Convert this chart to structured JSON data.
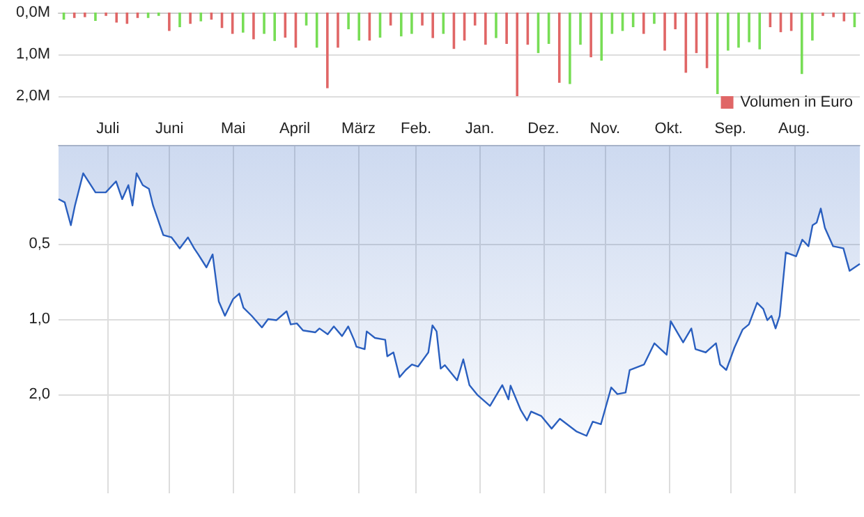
{
  "chart_data": [
    {
      "type": "bar",
      "grid": "y",
      "legend": "bottom right",
      "tick_labels": "y",
      "categories": [
        null,
        null,
        null,
        null,
        null,
        null,
        null,
        null,
        null,
        null,
        null,
        null,
        null,
        null,
        null,
        null,
        null,
        null,
        null,
        null,
        null,
        null,
        null,
        null,
        null,
        null,
        null,
        null,
        null,
        null,
        null,
        null,
        null,
        null,
        null,
        null,
        null,
        null,
        null,
        null,
        null,
        null,
        null,
        null,
        null,
        null,
        null,
        null,
        null,
        null,
        null,
        null,
        null,
        null,
        null,
        null,
        null,
        null,
        null,
        null,
        null,
        null,
        null,
        null,
        null,
        null,
        null,
        null,
        null,
        null,
        null,
        null,
        null,
        null,
        null,
        null
      ],
      "ylim": [
        2,
        0
      ],
      "yticks": [
        {
          "value": 0,
          "label": "0,0M"
        },
        {
          "value": 1,
          "label": "1,0M"
        },
        {
          "value": 2,
          "label": "2,0M"
        }
      ],
      "series": [
        {
          "name": "Volumen in Euro",
          "color": "#e06666",
          "values": [
            0.17,
            0.13,
            0.11,
            0.2,
            0.08,
            0.24,
            0.27,
            0.13,
            0.13,
            0.08,
            0.44,
            0.35,
            0.27,
            0.21,
            0.17,
            0.37,
            0.51,
            0.48,
            0.64,
            0.51,
            0.68,
            0.6,
            0.84,
            0.31,
            0.84,
            1.81,
            0.84,
            0.4,
            0.67,
            0.67,
            0.6,
            0.31,
            0.57,
            0.51,
            0.31,
            0.61,
            0.51,
            0.87,
            0.67,
            0.31,
            0.77,
            0.61,
            0.75,
            2.0,
            0.77,
            0.97,
            0.75,
            1.68,
            1.71,
            0.77,
            1.07,
            1.15,
            0.51,
            0.44,
            0.35,
            0.51,
            0.27,
            0.91,
            0.4,
            1.44,
            0.97,
            1.33,
            1.95,
            0.91,
            0.84,
            0.71,
            0.88,
            0.35,
            0.47,
            0.44,
            1.47,
            0.67,
            0.08,
            0.11,
            0.21,
            0.35
          ],
          "colors": [
            "#77dd55",
            "#e06666",
            "#e06666",
            "#77dd55",
            "#e06666",
            "#e06666",
            "#e06666",
            "#e06666",
            "#77dd55",
            "#77dd55",
            "#e06666",
            "#77dd55",
            "#e06666",
            "#77dd55",
            "#e06666",
            "#e06666",
            "#e06666",
            "#77dd55",
            "#e06666",
            "#77dd55",
            "#77dd55",
            "#e06666",
            "#e06666",
            "#77dd55",
            "#77dd55",
            "#e06666",
            "#e06666",
            "#77dd55",
            "#77dd55",
            "#e06666",
            "#77dd55",
            "#e06666",
            "#77dd55",
            "#77dd55",
            "#e06666",
            "#e06666",
            "#77dd55",
            "#e06666",
            "#e06666",
            "#e06666",
            "#e06666",
            "#77dd55",
            "#e06666",
            "#e06666",
            "#e06666",
            "#77dd55",
            "#77dd55",
            "#e06666",
            "#77dd55",
            "#77dd55",
            "#e06666",
            "#77dd55",
            "#77dd55",
            "#77dd55",
            "#77dd55",
            "#e06666",
            "#77dd55",
            "#e06666",
            "#e06666",
            "#e06666",
            "#e06666",
            "#e06666",
            "#77dd55",
            "#77dd55",
            "#77dd55",
            "#77dd55",
            "#77dd55",
            "#e06666",
            "#e06666",
            "#e06666",
            "#77dd55",
            "#77dd55",
            "#e06666",
            "#e06666",
            "#e06666",
            "#77dd55"
          ]
        }
      ]
    },
    {
      "type": "area",
      "log": "y",
      "grid": true,
      "marker": "none",
      "legend": false,
      "categories": [
        null,
        null,
        null,
        null,
        null,
        null,
        null,
        null,
        null,
        null,
        null,
        null,
        null,
        null,
        null,
        null,
        null,
        null,
        null,
        null,
        null,
        null,
        null,
        null,
        "Juli",
        null,
        null,
        null,
        null,
        null,
        null,
        null,
        null,
        null,
        null,
        null,
        null,
        null,
        null,
        null,
        null,
        null,
        null,
        null,
        null,
        null,
        null,
        null,
        null,
        null,
        null,
        null,
        null,
        null,
        "Juni",
        null,
        null,
        null,
        null,
        null,
        null,
        null,
        null,
        null,
        null,
        null,
        null,
        null,
        null,
        null,
        null,
        null,
        null,
        null,
        null,
        null,
        null,
        null,
        null,
        null,
        null,
        null,
        null,
        null,
        null,
        "Mai",
        null,
        null,
        null,
        null,
        null,
        null,
        null,
        null,
        null,
        null,
        null,
        null,
        null,
        null,
        null,
        null,
        null,
        null,
        null,
        null,
        null,
        null,
        null,
        null,
        null,
        null,
        null,
        null,
        null,
        "April",
        null,
        null,
        null,
        null,
        null,
        null,
        null,
        null,
        null,
        null,
        null,
        null,
        null,
        null,
        null,
        null,
        null,
        null,
        null,
        null,
        null,
        null,
        null,
        null,
        null,
        null,
        null,
        null,
        null,
        null,
        "März",
        null,
        null,
        null,
        null,
        null,
        null,
        null,
        null,
        null,
        null,
        null,
        null,
        null,
        null,
        null,
        null,
        null,
        null,
        null,
        null,
        null,
        null,
        null,
        null,
        null,
        null,
        null,
        "Feb.",
        null,
        null,
        null,
        null,
        null,
        null,
        null,
        null,
        null,
        null,
        null,
        null,
        null,
        null,
        null,
        null,
        null,
        null,
        null,
        null,
        null,
        null,
        null,
        null,
        null,
        null,
        null,
        null,
        null,
        null,
        "Jan.",
        null,
        null,
        null,
        null,
        null,
        null,
        null,
        null,
        null,
        null,
        null,
        null,
        null,
        null,
        null,
        null,
        null,
        null,
        null,
        null,
        null,
        null,
        null,
        null,
        null,
        null,
        null,
        null,
        null,
        null,
        "Dez.",
        null,
        null,
        null,
        null,
        null,
        null,
        null,
        null,
        null,
        null,
        null,
        null,
        null,
        null,
        null,
        null,
        null,
        null,
        null,
        null,
        null,
        null,
        null,
        null,
        null,
        null,
        null,
        null,
        null,
        "Nov.",
        null,
        null,
        null,
        null,
        null,
        null,
        null,
        null,
        null,
        null,
        null,
        null,
        null,
        null,
        null,
        null,
        null,
        null,
        null,
        null,
        null,
        null,
        null,
        null,
        null,
        null,
        null,
        null,
        null,
        null,
        "Okt.",
        null,
        null,
        null,
        null,
        null,
        null,
        null,
        null,
        null,
        null,
        null,
        null,
        null,
        null,
        null,
        null,
        null,
        null,
        null,
        null,
        null,
        null,
        null,
        null,
        null,
        null,
        null,
        null,
        null,
        "Sep.",
        null,
        null,
        null,
        null,
        null,
        null,
        null,
        null,
        null,
        null,
        null,
        null,
        null,
        null,
        null,
        null,
        null,
        null,
        null,
        null,
        null,
        null,
        null,
        null,
        null,
        null,
        null,
        null,
        null,
        null,
        "Aug.",
        null,
        null,
        null,
        null,
        null,
        null,
        null,
        null,
        null,
        null,
        null,
        null,
        null,
        null,
        null,
        null,
        null,
        null,
        null,
        null,
        null,
        null,
        null,
        null,
        null,
        null,
        null,
        null,
        null,
        null,
        null,
        null
      ],
      "ylim": [
        5,
        0.2
      ],
      "yticks": [
        {
          "value": 0.5,
          "label": "0,5"
        },
        {
          "value": 1,
          "label": "1,0"
        },
        {
          "value": 2,
          "label": "2,0"
        }
      ],
      "series": [
        {
          "color": "#2a5fbf",
          "values": [
            0.33,
            null,
            null,
            0.34,
            null,
            null,
            0.42,
            null,
            0.35,
            null,
            null,
            null,
            0.26,
            null,
            null,
            null,
            null,
            null,
            0.31,
            null,
            null,
            null,
            null,
            0.31,
            null,
            null,
            null,
            null,
            0.28,
            null,
            null,
            0.33,
            null,
            null,
            0.29,
            null,
            0.35,
            null,
            0.26,
            null,
            null,
            0.29,
            null,
            null,
            0.3,
            null,
            0.35,
            null,
            null,
            null,
            null,
            0.46,
            null,
            null,
            null,
            0.47,
            null,
            null,
            null,
            0.52,
            null,
            null,
            null,
            0.47,
            null,
            null,
            0.52,
            null,
            0.55,
            null,
            null,
            null,
            0.62,
            null,
            null,
            0.55,
            null,
            null,
            0.85,
            null,
            null,
            0.97,
            null,
            null,
            null,
            0.83,
            null,
            null,
            0.79,
            null,
            0.9,
            null,
            null,
            null,
            0.97,
            null,
            null,
            null,
            null,
            1.08,
            null,
            null,
            1.0,
            null,
            null,
            null,
            1.01,
            null,
            null,
            null,
            null,
            0.93,
            null,
            1.05,
            null,
            null,
            1.04,
            null,
            null,
            1.11,
            null,
            null,
            null,
            null,
            null,
            1.13,
            null,
            1.09,
            null,
            null,
            null,
            1.15,
            null,
            null,
            1.07,
            null,
            null,
            null,
            1.17,
            null,
            null,
            1.07,
            null,
            null,
            1.22,
            1.29,
            null,
            null,
            null,
            1.32,
            1.12,
            null,
            null,
            null,
            1.19,
            null,
            null,
            null,
            null,
            1.21,
            1.41,
            null,
            null,
            1.36,
            null,
            null,
            1.71,
            null,
            null,
            1.6,
            null,
            null,
            1.52,
            null,
            null,
            1.55,
            null,
            null,
            null,
            null,
            1.36,
            null,
            1.06,
            null,
            1.12,
            null,
            1.58,
            null,
            1.53,
            null,
            null,
            null,
            null,
            null,
            1.76,
            null,
            null,
            1.45,
            null,
            null,
            1.84,
            null,
            null,
            null,
            2.02,
            null,
            null,
            null,
            null,
            null,
            2.23,
            null,
            null,
            null,
            null,
            null,
            1.84,
            null,
            null,
            2.1,
            1.85,
            null,
            null,
            null,
            null,
            2.32,
            null,
            null,
            2.55,
            null,
            2.35,
            null,
            null,
            null,
            null,
            2.45,
            null,
            null,
            null,
            null,
            2.75,
            null,
            null,
            null,
            2.51,
            null,
            null,
            null,
            null,
            null,
            null,
            null,
            2.82,
            null,
            null,
            null,
            null,
            2.94,
            null,
            null,
            2.58,
            null,
            null,
            null,
            2.64,
            null,
            null,
            null,
            null,
            1.88,
            null,
            null,
            2.0,
            null,
            null,
            null,
            1.97,
            null,
            1.6,
            null,
            null,
            null,
            null,
            null,
            null,
            1.52,
            null,
            null,
            null,
            null,
            1.25,
            null,
            null,
            null,
            null,
            null,
            1.39,
            null,
            1.02,
            null,
            null,
            null,
            null,
            null,
            1.24,
            null,
            null,
            null,
            1.09,
            null,
            1.32,
            null,
            null,
            null,
            null,
            1.36,
            null,
            null,
            null,
            null,
            1.25,
            null,
            1.52,
            null,
            null,
            1.6,
            null,
            null,
            null,
            1.3,
            null,
            null,
            null,
            1.1,
            null,
            null,
            1.05,
            null,
            null,
            null,
            0.86,
            null,
            null,
            0.91,
            null,
            1.01,
            null,
            0.97,
            null,
            1.09,
            null,
            0.97,
            null,
            null,
            0.54,
            null,
            null,
            null,
            null,
            0.56,
            null,
            null,
            0.48,
            null,
            null,
            0.51,
            null,
            0.42,
            null,
            0.41,
            null,
            0.36,
            null,
            0.43,
            null,
            null,
            null,
            0.51,
            null,
            null,
            null,
            null,
            0.52,
            null,
            null,
            0.64,
            null,
            null,
            null,
            null,
            0.6
          ]
        }
      ]
    }
  ]
}
